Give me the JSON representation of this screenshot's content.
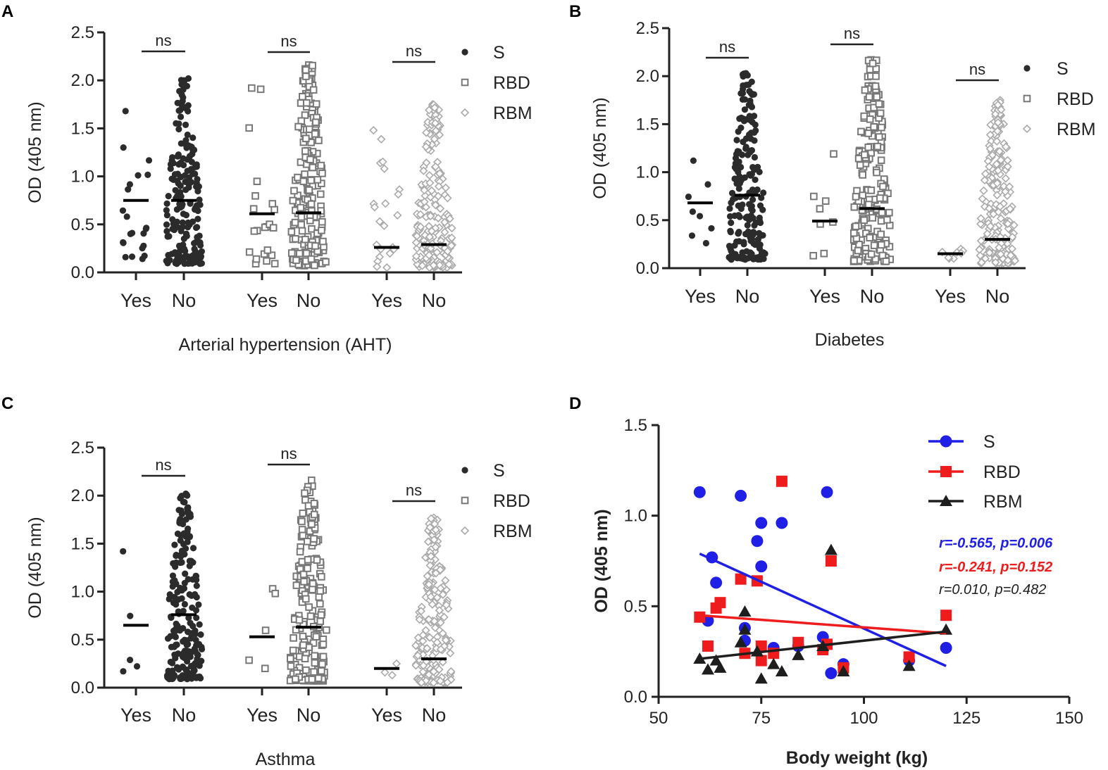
{
  "panels": {
    "A": {
      "letter": "A"
    },
    "B": {
      "letter": "B"
    },
    "C": {
      "letter": "C"
    },
    "D": {
      "letter": "D"
    }
  },
  "colors": {
    "S": "#2b2b2b",
    "RBD": "#777777",
    "RBM": "#aaaaaa",
    "d_S": "#1f1fe6",
    "d_RBD": "#ee1c1c",
    "d_RBM": "#1e1e1e"
  },
  "chart_data": [
    {
      "panel": "A",
      "type": "scatter",
      "title": "",
      "xlabel": "Arterial hypertension (AHT)",
      "ylabel": "OD (405 nm)",
      "ylim": [
        0,
        2.5
      ],
      "yticks": [
        "0.0",
        "0.5",
        "1.0",
        "1.5",
        "2.0",
        "2.5"
      ],
      "legend": [
        "S",
        "RBD",
        "RBM"
      ],
      "groups": [
        {
          "antigen": "S",
          "label": "Yes",
          "mean": 0.75,
          "n": 22,
          "max": 1.68,
          "min": 0.14
        },
        {
          "antigen": "S",
          "label": "No",
          "mean": 0.75,
          "n": 190,
          "max": 2.02,
          "min": 0.09
        },
        {
          "antigen": "RBD",
          "label": "Yes",
          "mean": 0.61,
          "n": 22,
          "max": 1.92,
          "min": 0.09
        },
        {
          "antigen": "RBD",
          "label": "No",
          "mean": 0.62,
          "n": 190,
          "max": 2.16,
          "min": 0.07
        },
        {
          "antigen": "RBM",
          "label": "Yes",
          "mean": 0.26,
          "n": 22,
          "max": 1.48,
          "min": 0.05
        },
        {
          "antigen": "RBM",
          "label": "No",
          "mean": 0.29,
          "n": 190,
          "max": 1.75,
          "min": 0.05
        }
      ],
      "comparisons": [
        "ns",
        "ns",
        "ns"
      ]
    },
    {
      "panel": "B",
      "type": "scatter",
      "title": "",
      "xlabel": "Diabetes",
      "ylabel": "OD (405 nm)",
      "ylim": [
        0,
        2.5
      ],
      "yticks": [
        "0.0",
        "0.5",
        "1.0",
        "1.5",
        "2.0",
        "2.5"
      ],
      "legend": [
        "S",
        "RBD",
        "RBM"
      ],
      "groups": [
        {
          "antigen": "S",
          "label": "Yes",
          "mean": 0.68,
          "n": 8,
          "max": 1.12,
          "min": 0.26
        },
        {
          "antigen": "S",
          "label": "No",
          "mean": 0.76,
          "n": 200,
          "max": 2.03,
          "min": 0.09
        },
        {
          "antigen": "RBD",
          "label": "Yes",
          "mean": 0.49,
          "n": 8,
          "max": 1.19,
          "min": 0.13
        },
        {
          "antigen": "RBD",
          "label": "No",
          "mean": 0.62,
          "n": 200,
          "max": 2.17,
          "min": 0.07
        },
        {
          "antigen": "RBM",
          "label": "Yes",
          "mean": 0.15,
          "n": 8,
          "max": 0.2,
          "min": 0.1
        },
        {
          "antigen": "RBM",
          "label": "No",
          "mean": 0.3,
          "n": 200,
          "max": 1.75,
          "min": 0.05
        }
      ],
      "comparisons": [
        "ns",
        "ns",
        "ns"
      ]
    },
    {
      "panel": "C",
      "type": "scatter",
      "title": "",
      "xlabel": "Asthma",
      "ylabel": "OD (405 nm)",
      "ylim": [
        0,
        2.5
      ],
      "yticks": [
        "0.0",
        "0.5",
        "1.0",
        "1.5",
        "2.0",
        "2.5"
      ],
      "legend": [
        "S",
        "RBD",
        "RBM"
      ],
      "groups": [
        {
          "antigen": "S",
          "label": "Yes",
          "mean": 0.65,
          "n": 5,
          "max": 1.42,
          "min": 0.17
        },
        {
          "antigen": "S",
          "label": "No",
          "mean": 0.76,
          "n": 200,
          "max": 2.02,
          "min": 0.09
        },
        {
          "antigen": "RBD",
          "label": "Yes",
          "mean": 0.53,
          "n": 5,
          "max": 1.03,
          "min": 0.2
        },
        {
          "antigen": "RBD",
          "label": "No",
          "mean": 0.63,
          "n": 200,
          "max": 2.16,
          "min": 0.07
        },
        {
          "antigen": "RBM",
          "label": "Yes",
          "mean": 0.2,
          "n": 3,
          "max": 0.25,
          "min": 0.13
        },
        {
          "antigen": "RBM",
          "label": "No",
          "mean": 0.3,
          "n": 200,
          "max": 1.77,
          "min": 0.05
        }
      ],
      "comparisons": [
        "ns",
        "ns",
        "ns"
      ]
    },
    {
      "panel": "D",
      "type": "scatter",
      "title": "",
      "xlabel": "Body weight (kg)",
      "ylabel": "OD (405 nm)",
      "xlim": [
        50,
        150
      ],
      "ylim": [
        0,
        1.5
      ],
      "xticks": [
        "50",
        "75",
        "100",
        "125",
        "150"
      ],
      "yticks": [
        "0.0",
        "0.5",
        "1.0",
        "1.5"
      ],
      "series": [
        {
          "name": "S",
          "stat": "r=-0.565, p=0.006",
          "fit": [
            [
              60,
              0.79
            ],
            [
              120,
              0.17
            ]
          ],
          "points": [
            [
              60,
              1.13
            ],
            [
              62,
              0.42
            ],
            [
              63,
              0.77
            ],
            [
              64,
              0.63
            ],
            [
              70,
              1.11
            ],
            [
              71,
              0.38
            ],
            [
              71,
              0.31
            ],
            [
              74,
              0.86
            ],
            [
              75,
              0.96
            ],
            [
              75,
              0.72
            ],
            [
              78,
              0.27
            ],
            [
              80,
              0.96
            ],
            [
              84,
              0.28
            ],
            [
              90,
              0.33
            ],
            [
              91,
              1.13
            ],
            [
              92,
              0.13
            ],
            [
              95,
              0.18
            ],
            [
              111,
              0.2
            ],
            [
              120,
              0.27
            ]
          ]
        },
        {
          "name": "RBD",
          "stat": "r=-0.241, p=0.152",
          "fit": [
            [
              60,
              0.45
            ],
            [
              120,
              0.35
            ]
          ],
          "points": [
            [
              60,
              0.44
            ],
            [
              62,
              0.28
            ],
            [
              64,
              0.49
            ],
            [
              65,
              0.52
            ],
            [
              70,
              0.65
            ],
            [
              71,
              0.24
            ],
            [
              74,
              0.64
            ],
            [
              75,
              0.28
            ],
            [
              75,
              0.2
            ],
            [
              78,
              0.24
            ],
            [
              80,
              1.19
            ],
            [
              84,
              0.3
            ],
            [
              90,
              0.26
            ],
            [
              91,
              0.29
            ],
            [
              92,
              0.75
            ],
            [
              95,
              0.16
            ],
            [
              111,
              0.22
            ],
            [
              120,
              0.45
            ]
          ]
        },
        {
          "name": "RBM",
          "stat": "r=0.010, p=0.482",
          "fit": [
            [
              60,
              0.21
            ],
            [
              120,
              0.36
            ]
          ],
          "points": [
            [
              60,
              0.21
            ],
            [
              62,
              0.15
            ],
            [
              64,
              0.2
            ],
            [
              65,
              0.16
            ],
            [
              70,
              0.3
            ],
            [
              71,
              0.47
            ],
            [
              71,
              0.37
            ],
            [
              74,
              0.25
            ],
            [
              75,
              0.1
            ],
            [
              78,
              0.18
            ],
            [
              80,
              0.14
            ],
            [
              84,
              0.23
            ],
            [
              90,
              0.28
            ],
            [
              92,
              0.81
            ],
            [
              95,
              0.14
            ],
            [
              111,
              0.17
            ],
            [
              120,
              0.37
            ]
          ]
        }
      ]
    }
  ]
}
